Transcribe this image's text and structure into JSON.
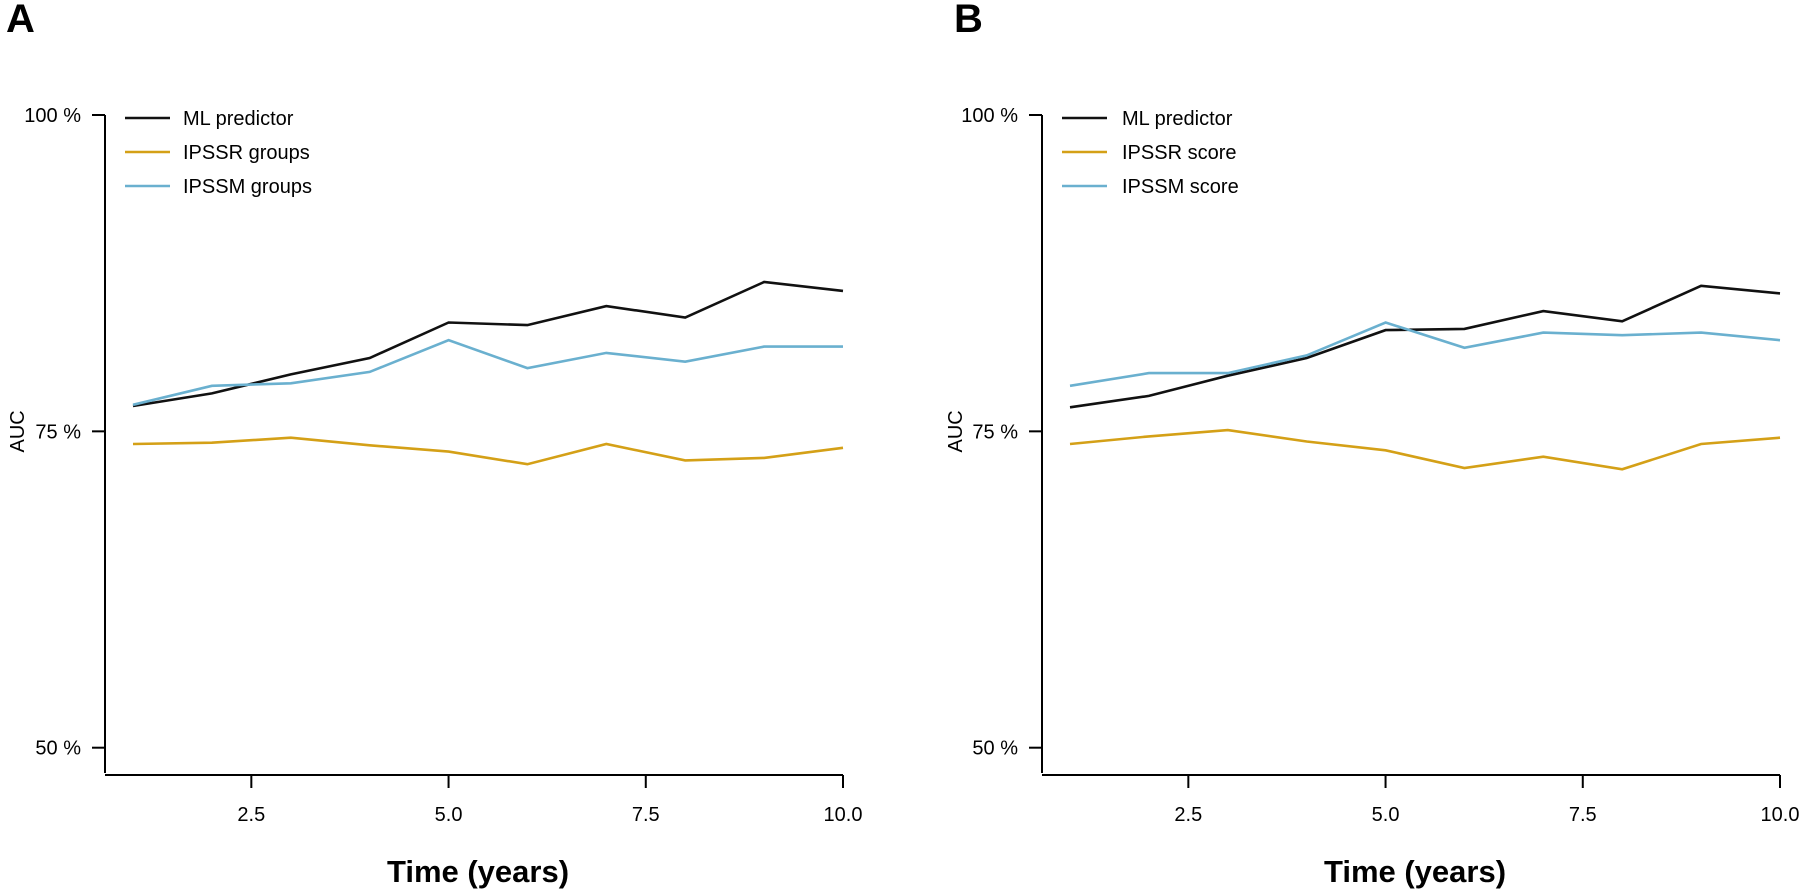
{
  "colors": {
    "ml": "#111111",
    "ipssr": "#d4a017",
    "ipssm": "#6ab0cf",
    "axis": "#000000"
  },
  "chart_data": [
    {
      "type": "line",
      "panel": "A",
      "xlabel": "Time (years)",
      "ylabel": "AUC",
      "xlim": [
        1,
        10
      ],
      "ylim": [
        0.48,
        1.0
      ],
      "x": [
        1,
        2,
        3,
        4,
        5,
        6,
        7,
        8,
        9,
        10
      ],
      "xticks": [
        2.5,
        5.0,
        7.5,
        10.0
      ],
      "xtick_labels": [
        "2.5",
        "5.0",
        "7.5",
        "10.0"
      ],
      "yticks": [
        0.5,
        0.75,
        1.0
      ],
      "ytick_labels": [
        "50 %",
        "75 %",
        "100 %"
      ],
      "legend_position": "top-left",
      "grid": false,
      "series": [
        {
          "name": "ML predictor",
          "color_key": "ml",
          "values": [
            0.77,
            0.78,
            0.795,
            0.808,
            0.836,
            0.834,
            0.849,
            0.84,
            0.868,
            0.861
          ]
        },
        {
          "name": "IPSSR groups",
          "color_key": "ipssr",
          "values": [
            0.74,
            0.741,
            0.745,
            0.739,
            0.734,
            0.724,
            0.74,
            0.727,
            0.729,
            0.737
          ]
        },
        {
          "name": "IPSSM groups",
          "color_key": "ipssm",
          "values": [
            0.771,
            0.786,
            0.788,
            0.797,
            0.822,
            0.8,
            0.812,
            0.805,
            0.817,
            0.817
          ]
        }
      ]
    },
    {
      "type": "line",
      "panel": "B",
      "xlabel": "Time (years)",
      "ylabel": "AUC",
      "xlim": [
        1,
        10
      ],
      "ylim": [
        0.48,
        1.0
      ],
      "x": [
        1,
        2,
        3,
        4,
        5,
        6,
        7,
        8,
        9,
        10
      ],
      "xticks": [
        2.5,
        5.0,
        7.5,
        10.0
      ],
      "xtick_labels": [
        "2.5",
        "5.0",
        "7.5",
        "10.0"
      ],
      "yticks": [
        0.5,
        0.75,
        1.0
      ],
      "ytick_labels": [
        "50 %",
        "75 %",
        "100 %"
      ],
      "legend_position": "top-left",
      "grid": false,
      "series": [
        {
          "name": "ML predictor",
          "color_key": "ml",
          "values": [
            0.769,
            0.778,
            0.794,
            0.808,
            0.83,
            0.831,
            0.845,
            0.837,
            0.865,
            0.859
          ]
        },
        {
          "name": "IPSSR score",
          "color_key": "ipssr",
          "values": [
            0.74,
            0.746,
            0.751,
            0.742,
            0.735,
            0.721,
            0.73,
            0.72,
            0.74,
            0.745
          ]
        },
        {
          "name": "IPSSM score",
          "color_key": "ipssm",
          "values": [
            0.786,
            0.796,
            0.796,
            0.81,
            0.836,
            0.816,
            0.828,
            0.826,
            0.828,
            0.822
          ]
        }
      ]
    }
  ]
}
